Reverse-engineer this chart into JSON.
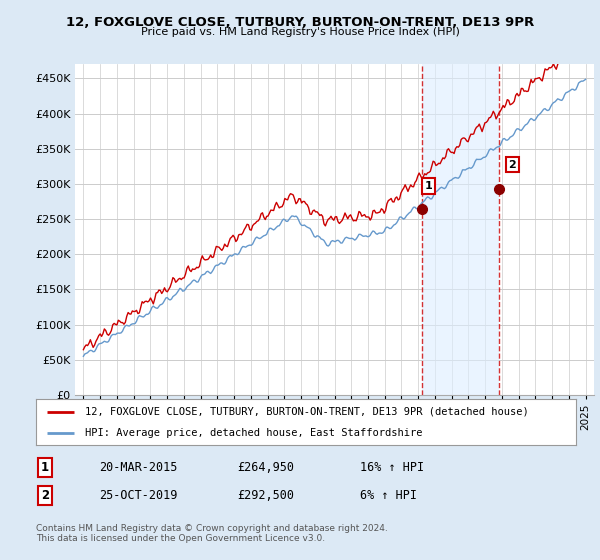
{
  "title": "12, FOXGLOVE CLOSE, TUTBURY, BURTON-ON-TRENT, DE13 9PR",
  "subtitle": "Price paid vs. HM Land Registry's House Price Index (HPI)",
  "ylabel_ticks": [
    "£0",
    "£50K",
    "£100K",
    "£150K",
    "£200K",
    "£250K",
    "£300K",
    "£350K",
    "£400K",
    "£450K"
  ],
  "ytick_values": [
    0,
    50000,
    100000,
    150000,
    200000,
    250000,
    300000,
    350000,
    400000,
    450000
  ],
  "ylim": [
    0,
    470000
  ],
  "xlim_start": 1994.5,
  "xlim_end": 2025.5,
  "red_line_color": "#cc0000",
  "blue_line_color": "#6699cc",
  "outer_bg_color": "#dce9f5",
  "plot_bg_color": "#ffffff",
  "grid_color": "#cccccc",
  "marker1_x": 2015.22,
  "marker1_y": 264950,
  "marker2_x": 2019.82,
  "marker2_y": 292500,
  "dashed_line_color": "#cc0000",
  "shade_color": "#ddeeff",
  "legend_label_red": "12, FOXGLOVE CLOSE, TUTBURY, BURTON-ON-TRENT, DE13 9PR (detached house)",
  "legend_label_blue": "HPI: Average price, detached house, East Staffordshire",
  "table_row1": [
    "1",
    "20-MAR-2015",
    "£264,950",
    "16% ↑ HPI"
  ],
  "table_row2": [
    "2",
    "25-OCT-2019",
    "£292,500",
    "6% ↑ HPI"
  ],
  "footer": "Contains HM Land Registry data © Crown copyright and database right 2024.\nThis data is licensed under the Open Government Licence v3.0.",
  "xtick_years": [
    1995,
    1996,
    1997,
    1998,
    1999,
    2000,
    2001,
    2002,
    2003,
    2004,
    2005,
    2006,
    2007,
    2008,
    2009,
    2010,
    2011,
    2012,
    2013,
    2014,
    2015,
    2016,
    2017,
    2018,
    2019,
    2020,
    2021,
    2022,
    2023,
    2024,
    2025
  ]
}
